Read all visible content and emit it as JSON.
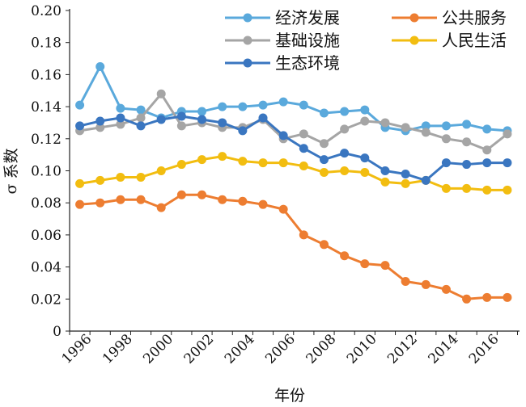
{
  "chart_data": {
    "type": "line",
    "title": "",
    "xlabel": "年份",
    "ylabel": "σ 系数",
    "ylim": [
      0,
      0.2
    ],
    "yticks": [
      "0",
      "0.02",
      "0.04",
      "0.06",
      "0.08",
      "0.10",
      "0.12",
      "0.14",
      "0.16",
      "0.18",
      "0.20"
    ],
    "x": [
      1996,
      1997,
      1998,
      1999,
      2000,
      2001,
      2002,
      2003,
      2004,
      2005,
      2006,
      2007,
      2008,
      2009,
      2010,
      2011,
      2012,
      2013,
      2014,
      2015,
      2016,
      2017
    ],
    "xtick_labels": [
      "1996",
      "1998",
      "2000",
      "2002",
      "2004",
      "2006",
      "2008",
      "2010",
      "2012",
      "2014",
      "2016"
    ],
    "legend": "top",
    "grid": false,
    "series": [
      {
        "name": "经济发展",
        "color": "#5aa9dc",
        "values": [
          0.141,
          0.165,
          0.139,
          0.138,
          0.133,
          0.137,
          0.137,
          0.14,
          0.14,
          0.141,
          0.143,
          0.141,
          0.136,
          0.137,
          0.138,
          0.127,
          0.125,
          0.128,
          0.128,
          0.129,
          0.126,
          0.125
        ]
      },
      {
        "name": "公共服务",
        "color": "#ed7d31",
        "values": [
          0.079,
          0.08,
          0.082,
          0.082,
          0.077,
          0.085,
          0.085,
          0.082,
          0.081,
          0.079,
          0.076,
          0.06,
          0.054,
          0.047,
          0.042,
          0.041,
          0.031,
          0.029,
          0.026,
          0.02,
          0.021,
          0.021
        ]
      },
      {
        "name": "基础设施",
        "color": "#a5a5a5",
        "values": [
          0.125,
          0.127,
          0.129,
          0.133,
          0.148,
          0.128,
          0.13,
          0.127,
          0.127,
          0.132,
          0.12,
          0.123,
          0.117,
          0.126,
          0.131,
          0.13,
          0.127,
          0.124,
          0.12,
          0.118,
          0.113,
          0.123
        ]
      },
      {
        "name": "人民生活",
        "color": "#f2bd10",
        "values": [
          0.092,
          0.094,
          0.096,
          0.096,
          0.1,
          0.104,
          0.107,
          0.109,
          0.106,
          0.105,
          0.105,
          0.103,
          0.099,
          0.1,
          0.099,
          0.093,
          0.092,
          0.094,
          0.089,
          0.089,
          0.088,
          0.088
        ]
      },
      {
        "name": "生态环境",
        "color": "#3a76c0",
        "values": [
          0.128,
          0.131,
          0.133,
          0.128,
          0.132,
          0.134,
          0.132,
          0.13,
          0.125,
          0.133,
          0.122,
          0.114,
          0.107,
          0.111,
          0.108,
          0.1,
          0.098,
          0.094,
          0.105,
          0.104,
          0.105,
          0.105
        ]
      }
    ]
  }
}
